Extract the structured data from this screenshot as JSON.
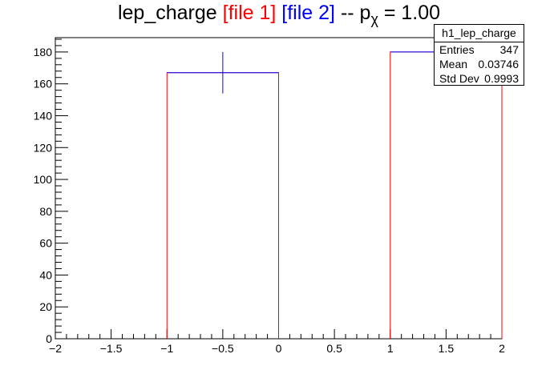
{
  "title": {
    "prefix": "lep_charge",
    "file1": "[file 1]",
    "file2": "[file 2]",
    "separator": "-- p",
    "subscript": "χ",
    "suffix": "= 1.00"
  },
  "stats_box": {
    "name": "h1_lep_charge",
    "entries_label": "Entries",
    "entries_value": "347",
    "mean_label": "Mean",
    "mean_value": "0.03746",
    "stddev_label": "Std Dev",
    "stddev_value": "0.9993"
  },
  "chart_data": {
    "type": "bar",
    "title": "lep_charge [file 1] [file 2] -- pχ = 1.00",
    "xlabel": "",
    "ylabel": "",
    "xlim": [
      -2,
      2
    ],
    "ylim": [
      0,
      189
    ],
    "x_ticks": [
      -2,
      -1.5,
      -1,
      -0.5,
      0,
      0.5,
      1,
      1.5,
      2
    ],
    "x_tick_labels": [
      "−2",
      "−1.5",
      "−1",
      "−0.5",
      "0",
      "0.5",
      "1",
      "1.5",
      "2"
    ],
    "y_ticks": [
      0,
      20,
      40,
      60,
      80,
      100,
      120,
      140,
      160,
      180
    ],
    "y_tick_labels": [
      "0",
      "20",
      "40",
      "60",
      "80",
      "100",
      "120",
      "140",
      "160",
      "180"
    ],
    "grid": false,
    "series": [
      {
        "style": "histogram-outline",
        "color": "#ff0000",
        "bins": [
          {
            "x0": -1,
            "x1": 0,
            "value": 167
          },
          {
            "x0": 1,
            "x1": 2,
            "value": 180
          }
        ]
      },
      {
        "style": "error-bars",
        "color": "#0000ff",
        "points": [
          {
            "x": -0.5,
            "y": 167,
            "xerr": 0.5,
            "yerr": 13
          },
          {
            "x": 1.5,
            "y": 180,
            "xerr": 0.5,
            "yerr": 13.4
          }
        ]
      }
    ]
  }
}
